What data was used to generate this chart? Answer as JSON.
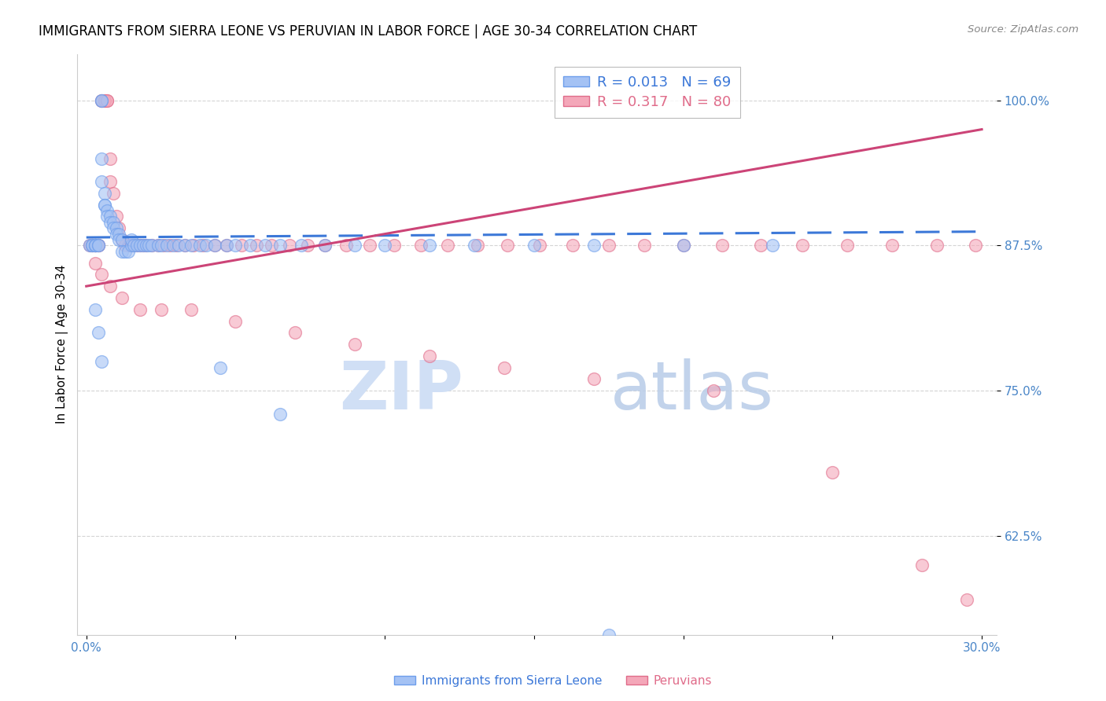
{
  "title": "IMMIGRANTS FROM SIERRA LEONE VS PERUVIAN IN LABOR FORCE | AGE 30-34 CORRELATION CHART",
  "source_text": "Source: ZipAtlas.com",
  "ylabel": "In Labor Force | Age 30-34",
  "xlim": [
    -0.003,
    0.305
  ],
  "ylim": [
    0.54,
    1.04
  ],
  "yticks": [
    0.625,
    0.75,
    0.875,
    1.0
  ],
  "yticklabels": [
    "62.5%",
    "75.0%",
    "87.5%",
    "100.0%"
  ],
  "xticks": [
    0.0,
    0.05,
    0.1,
    0.15,
    0.2,
    0.25,
    0.3
  ],
  "xticklabels": [
    "0.0%",
    "",
    "",
    "",
    "",
    "",
    "30.0%"
  ],
  "grid_color": "#d0d0d0",
  "blue_color": "#a4c2f4",
  "pink_color": "#f4a7b9",
  "blue_edge_color": "#6d9eeb",
  "pink_edge_color": "#e06c8a",
  "blue_trend_color": "#3c78d8",
  "pink_trend_color": "#cc4477",
  "tick_color": "#4a86c8",
  "tick_fontsize": 11,
  "title_fontsize": 12,
  "legend_fontsize": 13,
  "marker_size": 130,
  "blue_trend_y0": 0.882,
  "blue_trend_y1": 0.887,
  "pink_trend_y0": 0.84,
  "pink_trend_y1": 0.975,
  "watermark_zip_color": "#d0dff5",
  "watermark_atlas_color": "#b8cce8",
  "blue_x": [
    0.001,
    0.002,
    0.002,
    0.003,
    0.003,
    0.003,
    0.004,
    0.004,
    0.005,
    0.005,
    0.005,
    0.005,
    0.006,
    0.006,
    0.006,
    0.007,
    0.007,
    0.008,
    0.008,
    0.009,
    0.009,
    0.01,
    0.01,
    0.011,
    0.011,
    0.012,
    0.012,
    0.013,
    0.014,
    0.015,
    0.015,
    0.016,
    0.017,
    0.018,
    0.019,
    0.02,
    0.021,
    0.022,
    0.024,
    0.025,
    0.027,
    0.029,
    0.031,
    0.033,
    0.035,
    0.038,
    0.04,
    0.043,
    0.047,
    0.05,
    0.055,
    0.06,
    0.065,
    0.072,
    0.08,
    0.09,
    0.1,
    0.115,
    0.13,
    0.15,
    0.17,
    0.2,
    0.23,
    0.003,
    0.004,
    0.005,
    0.045,
    0.065,
    0.175
  ],
  "blue_y": [
    0.875,
    0.875,
    0.875,
    0.875,
    0.875,
    0.875,
    0.875,
    0.875,
    1.0,
    1.0,
    0.95,
    0.93,
    0.92,
    0.91,
    0.91,
    0.905,
    0.9,
    0.9,
    0.895,
    0.895,
    0.89,
    0.89,
    0.885,
    0.885,
    0.88,
    0.88,
    0.87,
    0.87,
    0.87,
    0.875,
    0.88,
    0.875,
    0.875,
    0.875,
    0.875,
    0.875,
    0.875,
    0.875,
    0.875,
    0.875,
    0.875,
    0.875,
    0.875,
    0.875,
    0.875,
    0.875,
    0.875,
    0.875,
    0.875,
    0.875,
    0.875,
    0.875,
    0.875,
    0.875,
    0.875,
    0.875,
    0.875,
    0.875,
    0.875,
    0.875,
    0.875,
    0.875,
    0.875,
    0.82,
    0.8,
    0.775,
    0.77,
    0.73,
    0.54
  ],
  "pink_x": [
    0.001,
    0.002,
    0.002,
    0.003,
    0.003,
    0.003,
    0.004,
    0.004,
    0.005,
    0.005,
    0.006,
    0.006,
    0.007,
    0.007,
    0.008,
    0.008,
    0.009,
    0.01,
    0.011,
    0.012,
    0.013,
    0.014,
    0.015,
    0.016,
    0.017,
    0.018,
    0.019,
    0.02,
    0.022,
    0.024,
    0.026,
    0.028,
    0.03,
    0.033,
    0.036,
    0.039,
    0.043,
    0.047,
    0.052,
    0.057,
    0.062,
    0.068,
    0.074,
    0.08,
    0.087,
    0.095,
    0.103,
    0.112,
    0.121,
    0.131,
    0.141,
    0.152,
    0.163,
    0.175,
    0.187,
    0.2,
    0.213,
    0.226,
    0.24,
    0.255,
    0.27,
    0.285,
    0.298,
    0.003,
    0.005,
    0.008,
    0.012,
    0.018,
    0.025,
    0.035,
    0.05,
    0.07,
    0.09,
    0.115,
    0.14,
    0.17,
    0.21,
    0.25,
    0.28,
    0.295
  ],
  "pink_y": [
    0.875,
    0.875,
    0.875,
    0.875,
    0.875,
    0.875,
    0.875,
    0.875,
    1.0,
    1.0,
    1.0,
    1.0,
    1.0,
    1.0,
    0.95,
    0.93,
    0.92,
    0.9,
    0.89,
    0.88,
    0.875,
    0.875,
    0.875,
    0.875,
    0.875,
    0.875,
    0.875,
    0.875,
    0.875,
    0.875,
    0.875,
    0.875,
    0.875,
    0.875,
    0.875,
    0.875,
    0.875,
    0.875,
    0.875,
    0.875,
    0.875,
    0.875,
    0.875,
    0.875,
    0.875,
    0.875,
    0.875,
    0.875,
    0.875,
    0.875,
    0.875,
    0.875,
    0.875,
    0.875,
    0.875,
    0.875,
    0.875,
    0.875,
    0.875,
    0.875,
    0.875,
    0.875,
    0.875,
    0.86,
    0.85,
    0.84,
    0.83,
    0.82,
    0.82,
    0.82,
    0.81,
    0.8,
    0.79,
    0.78,
    0.77,
    0.76,
    0.75,
    0.68,
    0.6,
    0.57
  ]
}
